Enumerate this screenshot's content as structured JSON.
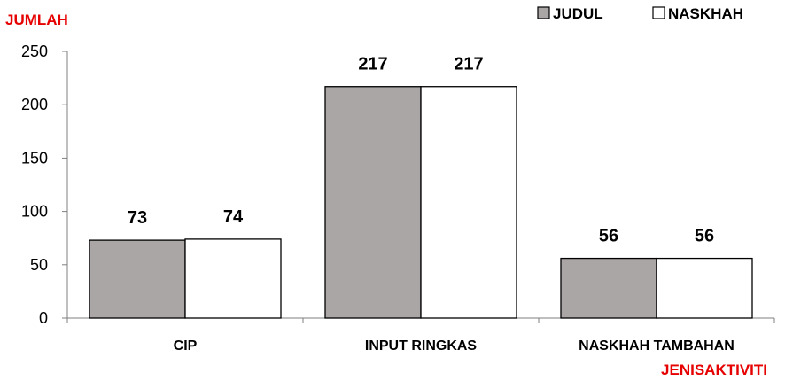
{
  "chart_data": {
    "type": "bar",
    "ylabel": "JUMLAH",
    "xlabel": "JENISAKTIVITI",
    "categories": [
      "CIP",
      "INPUT RINGKAS",
      "NASKHAH TAMBAHAN"
    ],
    "series": [
      {
        "name": "JUDUL",
        "values": [
          73,
          217,
          56
        ],
        "color": "#aaa6a6"
      },
      {
        "name": "NASKHAH",
        "values": [
          74,
          217,
          56
        ],
        "color": "#ffffff"
      }
    ],
    "ylim": [
      0,
      250
    ],
    "yticks": [
      "0",
      "50",
      "100",
      "150",
      "200",
      "250"
    ],
    "grid": false,
    "legend": "top-right",
    "data_labels": true,
    "label_color": "#e60000"
  }
}
